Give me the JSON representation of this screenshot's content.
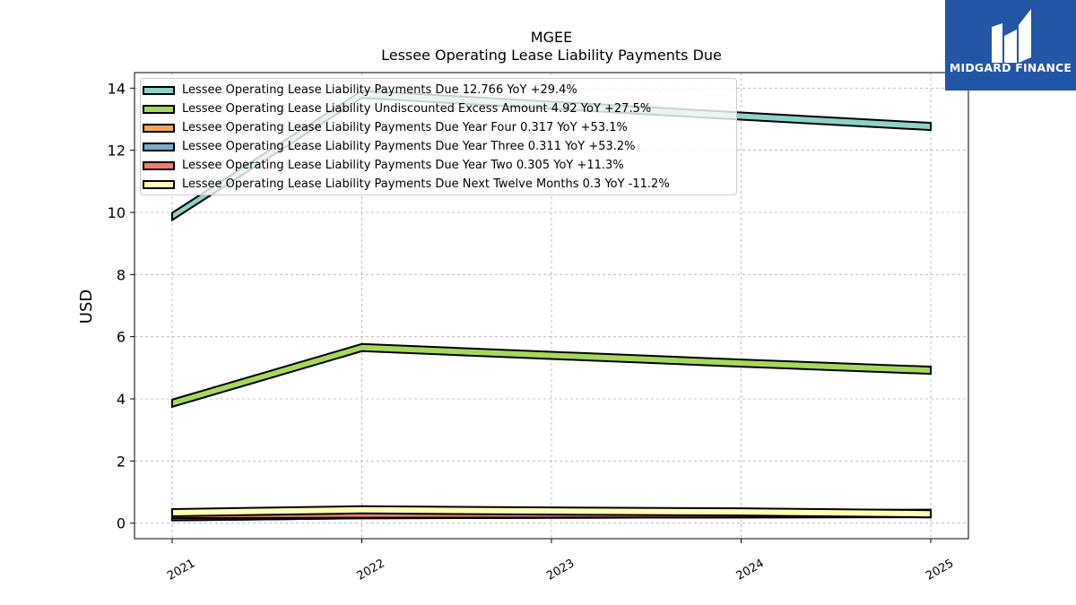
{
  "header": {
    "ticker": "MGEE",
    "title": "Lessee Operating Lease Liability Payments Due"
  },
  "logo": {
    "text": "MIDGARD FINANCE",
    "color": "#2456a6"
  },
  "chart_data": {
    "type": "area",
    "title": "Lessee Operating Lease Liability Payments Due",
    "ylabel": "USD",
    "xlabel": "",
    "x": [
      "2021",
      "2022",
      "2023",
      "2024",
      "2025"
    ],
    "ylim": [
      -0.5,
      14.5
    ],
    "yticks": [
      0,
      2,
      4,
      6,
      8,
      10,
      12,
      14
    ],
    "grid": true,
    "legend_position": "top-left",
    "series": [
      {
        "name": "Lessee Operating Lease Liability Payments Due",
        "label": "Lessee Operating Lease Liability Payments Due  12.766 YoY +29.4%",
        "color": "#8dd3c7",
        "values": [
          9.87,
          13.8,
          13.45,
          13.1,
          12.766
        ]
      },
      {
        "name": "Lessee Operating Lease Liability Undiscounted Excess Amount",
        "label": "Lessee Operating Lease Liability Undiscounted Excess Amount  4.92 YoY +27.5%",
        "color": "#a6d85b",
        "values": [
          3.86,
          5.65,
          5.4,
          5.15,
          4.92
        ]
      },
      {
        "name": "Lessee Operating Lease Liability Payments Due Year Four",
        "label": "Lessee Operating Lease Liability Payments Due Year Four  0.317 YoY +53.1%",
        "color": "#f5a55a",
        "values": [
          0.207,
          0.27,
          0.29,
          0.3,
          0.317
        ]
      },
      {
        "name": "Lessee Operating Lease Liability Payments Due Year Three",
        "label": "Lessee Operating Lease Liability Payments Due Year Three  0.311 YoY +53.2%",
        "color": "#7ba9cc",
        "values": [
          0.203,
          0.27,
          0.285,
          0.3,
          0.311
        ]
      },
      {
        "name": "Lessee Operating Lease Liability Payments Due Year Two",
        "label": "Lessee Operating Lease Liability Payments Due Year Two  0.305 YoY +11.3%",
        "color": "#f07f72",
        "values": [
          0.274,
          0.29,
          0.295,
          0.3,
          0.305
        ]
      },
      {
        "name": "Lessee Operating Lease Liability Payments Due Next Twelve Months",
        "label": "Lessee Operating Lease Liability Payments Due Next Twelve Months  0.3 YoY -11.2%",
        "color": "#ffffb3",
        "values": [
          0.338,
          0.43,
          0.39,
          0.36,
          0.3
        ]
      }
    ]
  }
}
